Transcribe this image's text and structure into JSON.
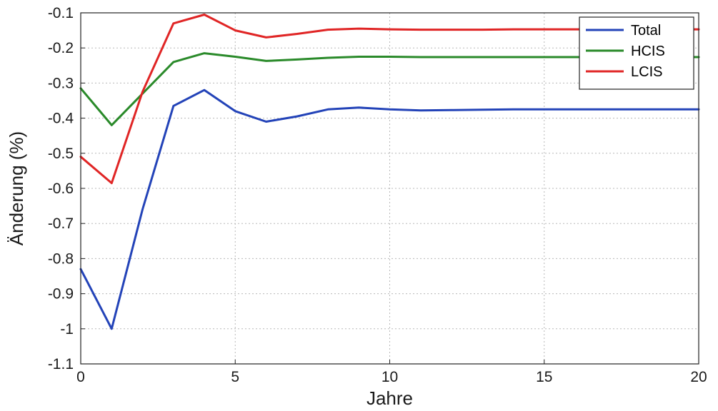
{
  "chart_data": {
    "type": "line",
    "xlabel": "Jahre",
    "ylabel": "Änderung (%)",
    "xlim": [
      0,
      20
    ],
    "ylim": [
      -1.1,
      -0.1
    ],
    "xticks": [
      0,
      5,
      10,
      15,
      20
    ],
    "yticks": [
      -0.1,
      -0.2,
      -0.3,
      -0.4,
      -0.5,
      -0.6,
      -0.7,
      -0.8,
      -0.9,
      -1,
      -1.1
    ],
    "grid": true,
    "legend_position": "top-right",
    "series": [
      {
        "name": "Total",
        "color": "#2343b8",
        "x": [
          0,
          1,
          2,
          3,
          4,
          5,
          6,
          7,
          8,
          9,
          10,
          11,
          12,
          13,
          14,
          15,
          16,
          17,
          18,
          19,
          20
        ],
        "values": [
          -0.83,
          -1.0,
          -0.66,
          -0.365,
          -0.32,
          -0.38,
          -0.41,
          -0.395,
          -0.375,
          -0.37,
          -0.375,
          -0.378,
          -0.377,
          -0.376,
          -0.375,
          -0.375,
          -0.375,
          -0.375,
          -0.375,
          -0.375,
          -0.375
        ]
      },
      {
        "name": "HCIS",
        "color": "#2a8a2a",
        "x": [
          0,
          1,
          2,
          3,
          4,
          5,
          6,
          7,
          8,
          9,
          10,
          11,
          12,
          13,
          14,
          15,
          16,
          17,
          18,
          19,
          20
        ],
        "values": [
          -0.315,
          -0.42,
          -0.33,
          -0.24,
          -0.215,
          -0.225,
          -0.237,
          -0.233,
          -0.228,
          -0.225,
          -0.225,
          -0.226,
          -0.226,
          -0.226,
          -0.226,
          -0.226,
          -0.226,
          -0.226,
          -0.226,
          -0.226,
          -0.226
        ]
      },
      {
        "name": "LCIS",
        "color": "#e02525",
        "x": [
          0,
          1,
          2,
          3,
          4,
          5,
          6,
          7,
          8,
          9,
          10,
          11,
          12,
          13,
          14,
          15,
          16,
          17,
          18,
          19,
          20
        ],
        "values": [
          -0.51,
          -0.585,
          -0.325,
          -0.13,
          -0.105,
          -0.15,
          -0.17,
          -0.16,
          -0.148,
          -0.145,
          -0.147,
          -0.148,
          -0.148,
          -0.148,
          -0.147,
          -0.147,
          -0.147,
          -0.147,
          -0.147,
          -0.147,
          -0.147
        ]
      }
    ]
  }
}
